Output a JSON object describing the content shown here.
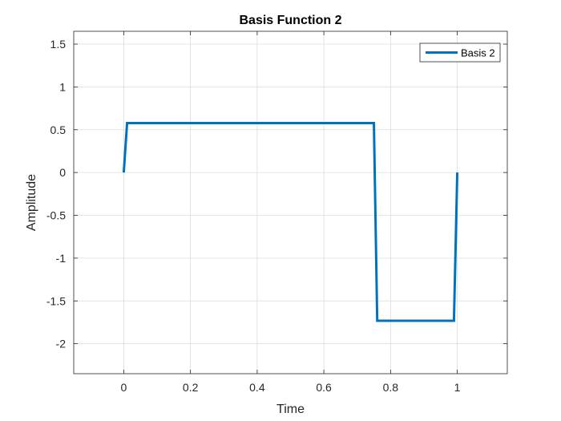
{
  "chart_data": {
    "type": "line",
    "title": "Basis Function 2",
    "xlabel": "Time",
    "ylabel": "Amplitude",
    "xlim": [
      -0.15,
      1.15
    ],
    "ylim": [
      -2.35,
      1.65
    ],
    "xticks": [
      0,
      0.2,
      0.4,
      0.6,
      0.8,
      1
    ],
    "xtick_labels": [
      "0",
      "0.2",
      "0.4",
      "0.6",
      "0.8",
      "1"
    ],
    "yticks": [
      1.5,
      1,
      0.5,
      0,
      -0.5,
      -1,
      -1.5,
      -2
    ],
    "ytick_labels": [
      "1.5",
      "1",
      "0.5",
      "0",
      "-0.5",
      "-1",
      "-1.5",
      "-2"
    ],
    "grid": true,
    "legend_position": "top-right",
    "series": [
      {
        "name": "Basis 2",
        "color": "#0072BD",
        "x": [
          0,
          0.01,
          0.75,
          0.76,
          0.99,
          1.0
        ],
        "y": [
          0,
          0.577,
          0.577,
          -1.732,
          -1.732,
          0
        ]
      }
    ]
  }
}
